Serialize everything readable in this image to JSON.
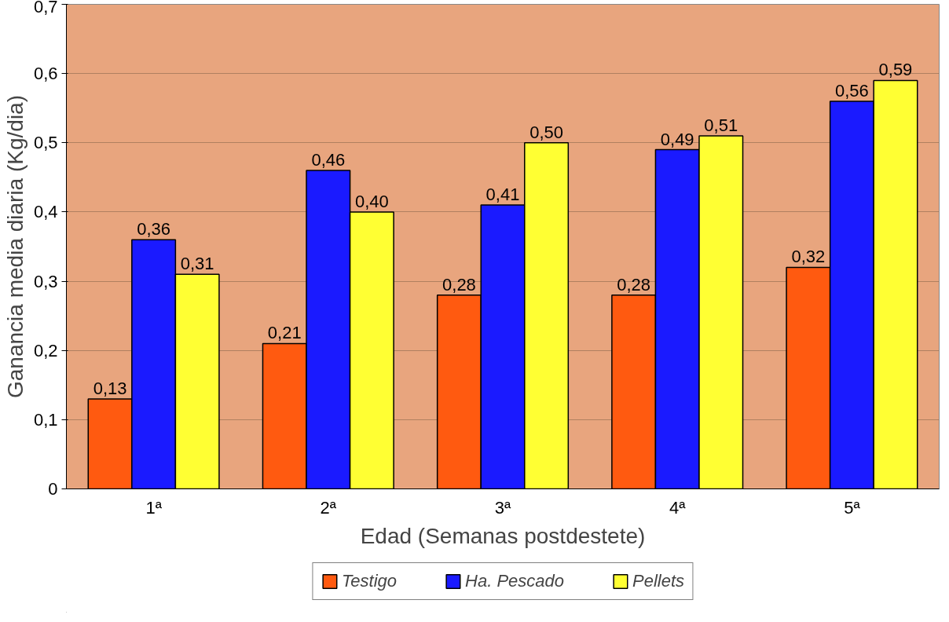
{
  "chart_data": {
    "type": "bar",
    "xlabel": "Edad (Semanas postdestete)",
    "ylabel": "Ganancia media diaria (Kg/dia)",
    "categories": [
      "1ª",
      "2ª",
      "3ª",
      "4ª",
      "5ª"
    ],
    "series": [
      {
        "name": "Testigo",
        "color": "#ff5a10",
        "values": [
          0.13,
          0.21,
          0.28,
          0.28,
          0.32
        ],
        "value_labels": [
          "0,13",
          "0,21",
          "0,28",
          "0,28",
          "0,32"
        ]
      },
      {
        "name": "Ha. Pescado",
        "color": "#1a1aff",
        "values": [
          0.36,
          0.46,
          0.41,
          0.49,
          0.56
        ],
        "value_labels": [
          "0,36",
          "0,46",
          "0,41",
          "0,49",
          "0,56"
        ]
      },
      {
        "name": "Pellets",
        "color": "#ffff33",
        "values": [
          0.31,
          0.4,
          0.5,
          0.51,
          0.59
        ],
        "value_labels": [
          "0,31",
          "0,40",
          "0,50",
          "0,51",
          "0,59"
        ]
      }
    ],
    "ylim": [
      0,
      0.7
    ],
    "yticks": [
      {
        "value": 0,
        "label": "0"
      },
      {
        "value": 0.1,
        "label": "0,1"
      },
      {
        "value": 0.2,
        "label": "0,2"
      },
      {
        "value": 0.3,
        "label": "0,3"
      },
      {
        "value": 0.4,
        "label": "0,4"
      },
      {
        "value": 0.5,
        "label": "0,5"
      },
      {
        "value": 0.6,
        "label": "0,6"
      },
      {
        "value": 0.7,
        "label": "0,7"
      }
    ],
    "grid": "y",
    "legend": "bottom"
  }
}
